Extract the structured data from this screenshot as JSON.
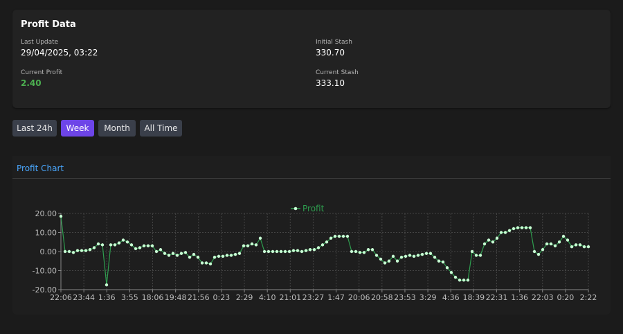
{
  "profit_data": {
    "title": "Profit Data",
    "last_update_label": "Last Update",
    "last_update_value": "29/04/2025, 03:22",
    "initial_stash_label": "Initial Stash",
    "initial_stash_value": "330.70",
    "current_profit_label": "Current Profit",
    "current_profit_value": "2.40",
    "current_stash_label": "Current Stash",
    "current_stash_value": "333.10",
    "profit_color": "#4caf50"
  },
  "range_buttons": [
    {
      "label": "Last 24h",
      "active": false
    },
    {
      "label": "Week",
      "active": true
    },
    {
      "label": "Month",
      "active": false
    },
    {
      "label": "All Time",
      "active": false
    }
  ],
  "chart_section": {
    "title": "Profit Chart"
  },
  "chart_data": {
    "type": "line",
    "title": "",
    "xlabel": "",
    "ylabel": "",
    "ylim": [
      -20,
      20
    ],
    "y_ticks": [
      "20.00",
      "10.00",
      "0.00",
      "-10.00",
      "-20.00"
    ],
    "x_tick_labels": [
      "22:06",
      "23:44",
      "1:36",
      "3:55",
      "18:06",
      "19:48",
      "21:56",
      "0:23",
      "2:29",
      "4:10",
      "21:01",
      "23:27",
      "1:47",
      "20:06",
      "20:58",
      "23:53",
      "3:29",
      "4:36",
      "18:39",
      "22:31",
      "1:36",
      "22:03",
      "0:20",
      "2:22"
    ],
    "grid": true,
    "legend_position": "top-center",
    "line_color": "#2e9e4f",
    "point_color": "#c8ffd4",
    "series": [
      {
        "name": "Profit",
        "values": [
          18.5,
          0,
          0,
          -0.5,
          0.5,
          0.5,
          0.5,
          1,
          2,
          4,
          3.5,
          -17.5,
          3.5,
          3.5,
          4.5,
          6,
          5,
          3.5,
          1.5,
          2,
          3,
          3,
          3,
          0,
          1,
          -1,
          -2,
          -1,
          -2,
          -1,
          -0.5,
          -3,
          -1.5,
          -3,
          -6,
          -6,
          -6.5,
          -3,
          -2.5,
          -2.5,
          -2,
          -2,
          -1.5,
          -1,
          3,
          3,
          4,
          3.5,
          7,
          0,
          0,
          0,
          0,
          0,
          0,
          0,
          0.5,
          0.5,
          0,
          0.5,
          1,
          1,
          2,
          3.5,
          5,
          7,
          8,
          8,
          8,
          8,
          0,
          0,
          -0.5,
          -0.5,
          1,
          1,
          -2,
          -4,
          -6,
          -5,
          -2.5,
          -5,
          -3,
          -2.5,
          -2,
          -2.5,
          -2,
          -1.5,
          -1,
          -1,
          -3,
          -5,
          -5.5,
          -8.5,
          -11,
          -13.5,
          -15,
          -15,
          -15,
          0,
          -2,
          -2,
          4,
          6,
          5,
          7,
          10,
          10,
          11,
          12,
          12.5,
          12.5,
          12.5,
          12.5,
          0,
          -1.5,
          1,
          4,
          4,
          3,
          5,
          8,
          6,
          2.5,
          3.5,
          3.5,
          2.5,
          2.5
        ]
      }
    ]
  }
}
